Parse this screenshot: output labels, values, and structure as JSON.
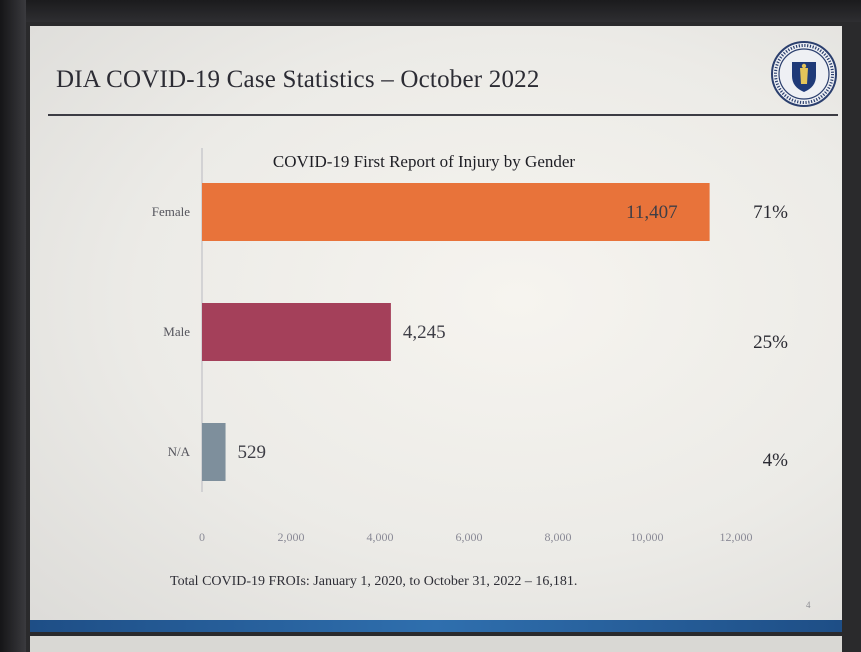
{
  "slide": {
    "title": "DIA COVID-19 Case Statistics  – October 2022",
    "footnote": "Total COVID-19 FROIs: January 1, 2020, to October 31, 2022  – 16,181.",
    "page_number": "4",
    "seal_icon": "massachusetts-seal-icon"
  },
  "chart_data": {
    "type": "bar",
    "orientation": "horizontal",
    "title": "COVID-19 First Report of Injury by Gender",
    "categories": [
      "Female",
      "Male",
      "N/A"
    ],
    "values": [
      11407,
      4245,
      529
    ],
    "value_labels": [
      "11,407",
      "4,245",
      "529"
    ],
    "percentages": [
      "71%",
      "25%",
      "4%"
    ],
    "colors": [
      "#e8733a",
      "#a4405a",
      "#7e8f9c"
    ],
    "xlim": [
      0,
      12000
    ],
    "xticks": [
      0,
      2000,
      4000,
      6000,
      8000,
      10000,
      12000
    ],
    "xtick_labels": [
      "0",
      "2,000",
      "4,000",
      "6,000",
      "8,000",
      "10,000",
      "12,000"
    ],
    "grid": false,
    "legend": "none"
  }
}
